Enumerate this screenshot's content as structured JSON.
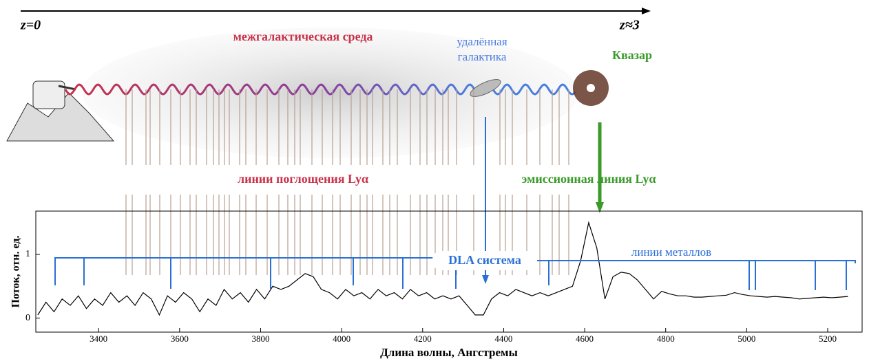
{
  "diagram": {
    "z_start": "z=0",
    "z_end": "z≈3",
    "igm": "межгалактическая среда",
    "galaxy": [
      "удалённая",
      "галактика"
    ],
    "quasar": "Квазар",
    "absorption": "линии поглощения Lyα",
    "emission": "эмиссионная линия Lyα",
    "dla": "DLA система",
    "metals": "линии металлов"
  },
  "chart_data": {
    "type": "line",
    "xlabel": "Длина волны, Ангстремы",
    "ylabel": "Поток, отн. ед.",
    "xlim": [
      3245,
      5285
    ],
    "ylim": [
      -0.22,
      1.68
    ],
    "xticks": [
      3400,
      3600,
      3800,
      4000,
      4200,
      4400,
      4600,
      4800,
      5000,
      5200
    ],
    "yticks": [
      0,
      1
    ],
    "series": [
      {
        "color": "#000000",
        "x": [
          3250,
          3270,
          3290,
          3310,
          3330,
          3350,
          3370,
          3390,
          3410,
          3430,
          3450,
          3470,
          3490,
          3510,
          3530,
          3550,
          3570,
          3590,
          3610,
          3630,
          3650,
          3670,
          3690,
          3710,
          3730,
          3750,
          3770,
          3790,
          3810,
          3830,
          3850,
          3870,
          3890,
          3910,
          3930,
          3950,
          3970,
          3990,
          4010,
          4030,
          4050,
          4070,
          4090,
          4110,
          4130,
          4150,
          4170,
          4190,
          4210,
          4230,
          4250,
          4270,
          4290,
          4310,
          4330,
          4350,
          4370,
          4390,
          4410,
          4430,
          4450,
          4470,
          4490,
          4510,
          4530,
          4550,
          4570,
          4590,
          4610,
          4630,
          4650,
          4670,
          4690,
          4710,
          4730,
          4750,
          4770,
          4790,
          4810,
          4830,
          4850,
          4870,
          4890,
          4910,
          4930,
          4950,
          4970,
          4990,
          5010,
          5030,
          5050,
          5070,
          5090,
          5110,
          5130,
          5150,
          5170,
          5190,
          5210,
          5230,
          5250
        ],
        "values": [
          0.05,
          0.25,
          0.1,
          0.3,
          0.2,
          0.35,
          0.15,
          0.3,
          0.2,
          0.4,
          0.25,
          0.35,
          0.2,
          0.4,
          0.3,
          0.05,
          0.35,
          0.25,
          0.4,
          0.3,
          0.1,
          0.3,
          0.2,
          0.45,
          0.3,
          0.4,
          0.25,
          0.45,
          0.3,
          0.5,
          0.45,
          0.5,
          0.6,
          0.7,
          0.65,
          0.45,
          0.4,
          0.3,
          0.45,
          0.35,
          0.4,
          0.3,
          0.45,
          0.35,
          0.4,
          0.3,
          0.45,
          0.35,
          0.4,
          0.3,
          0.35,
          0.3,
          0.35,
          0.2,
          0.05,
          0.05,
          0.3,
          0.4,
          0.35,
          0.45,
          0.4,
          0.35,
          0.4,
          0.35,
          0.4,
          0.45,
          0.5,
          0.9,
          1.5,
          1.1,
          0.3,
          0.65,
          0.72,
          0.7,
          0.6,
          0.45,
          0.3,
          0.42,
          0.38,
          0.35,
          0.35,
          0.33,
          0.33,
          0.34,
          0.35,
          0.36,
          0.4,
          0.37,
          0.35,
          0.34,
          0.33,
          0.34,
          0.33,
          0.32,
          0.3,
          0.31,
          0.32,
          0.33,
          0.32,
          0.33,
          0.34
        ]
      }
    ]
  }
}
